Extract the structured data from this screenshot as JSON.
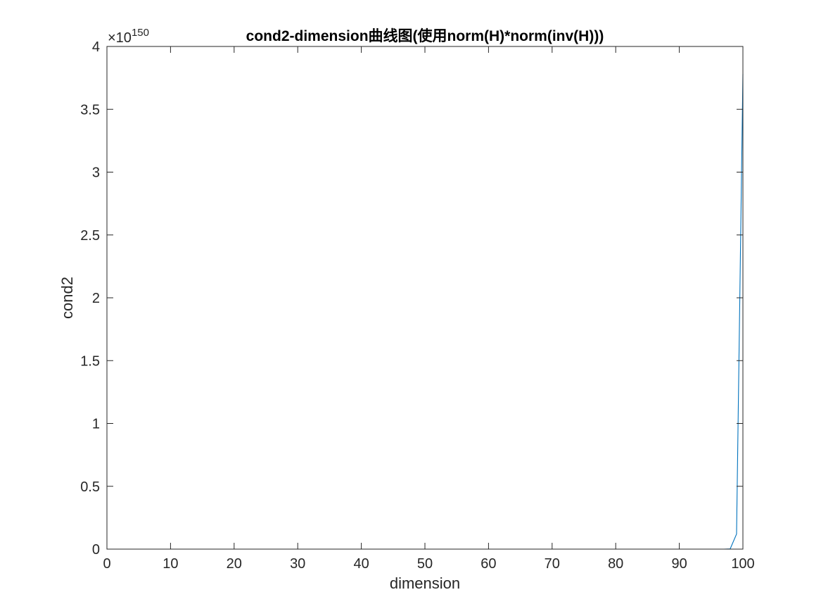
{
  "chart_data": {
    "type": "line",
    "title": "cond2-dimension曲线图(使用norm(H)*norm(inv(H)))",
    "xlabel": "dimension",
    "ylabel": "cond2",
    "y_exponent_base": "×10",
    "y_exponent_power": "150",
    "xlim": [
      0,
      100
    ],
    "ylim": [
      0,
      4
    ],
    "x_ticks": [
      0,
      10,
      20,
      30,
      40,
      50,
      60,
      70,
      80,
      90,
      100
    ],
    "x_tick_labels": [
      "0",
      "10",
      "20",
      "30",
      "40",
      "50",
      "60",
      "70",
      "80",
      "90",
      "100"
    ],
    "y_ticks": [
      0,
      0.5,
      1,
      1.5,
      2,
      2.5,
      3,
      3.5,
      4
    ],
    "y_tick_labels": [
      "0",
      "0.5",
      "1",
      "1.5",
      "2",
      "2.5",
      "3",
      "3.5",
      "4"
    ],
    "grid": false,
    "series": [
      {
        "color": "#0072BD",
        "x": [
          1,
          97,
          98,
          99,
          100
        ],
        "y": [
          0,
          0,
          0.002,
          0.12,
          3.78
        ]
      },
      {
        "color": "#D95319",
        "x": [
          1,
          100
        ],
        "y": [
          0,
          0
        ]
      }
    ]
  }
}
